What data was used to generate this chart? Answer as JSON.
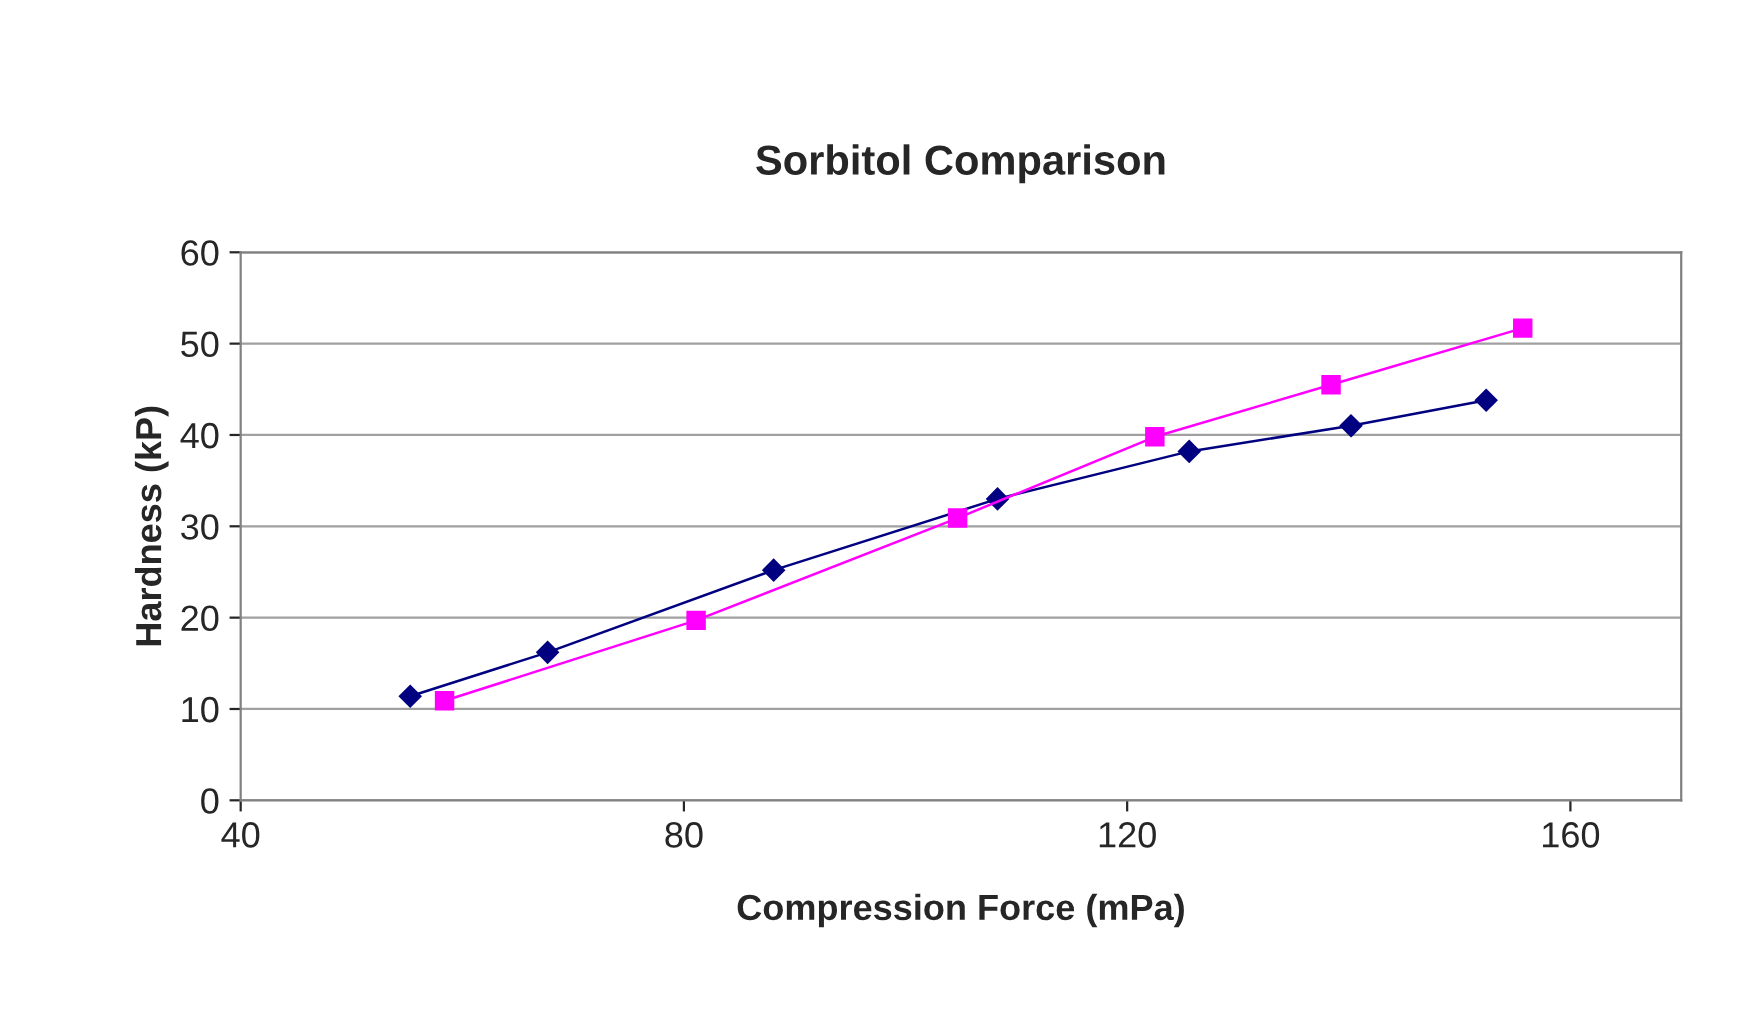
{
  "chart_data": {
    "type": "line",
    "title": "Sorbitol Comparison",
    "xlabel": "Compression Force (mPa)",
    "ylabel": "Hardness (kP)",
    "series": [
      {
        "color": "#000080",
        "marker": "diamond",
        "x": [
          55.3,
          67.7,
          88.1,
          108.3,
          125.6,
          140.2,
          152.4
        ],
        "values": [
          11.4,
          16.2,
          25.2,
          33.0,
          38.2,
          41.0,
          43.8
        ]
      },
      {
        "color": "#ff00ff",
        "marker": "square",
        "x": [
          58.4,
          81.1,
          104.7,
          122.5,
          138.4,
          155.7
        ],
        "values": [
          10.9,
          19.7,
          30.9,
          39.8,
          45.5,
          51.7
        ]
      }
    ],
    "xlim": [
      40,
      170
    ],
    "xticks": [
      40,
      80,
      120,
      160
    ],
    "ylim": [
      0,
      60
    ],
    "yticks": [
      0,
      10,
      20,
      30,
      40,
      50,
      60
    ],
    "grid": "y",
    "legend": false
  }
}
